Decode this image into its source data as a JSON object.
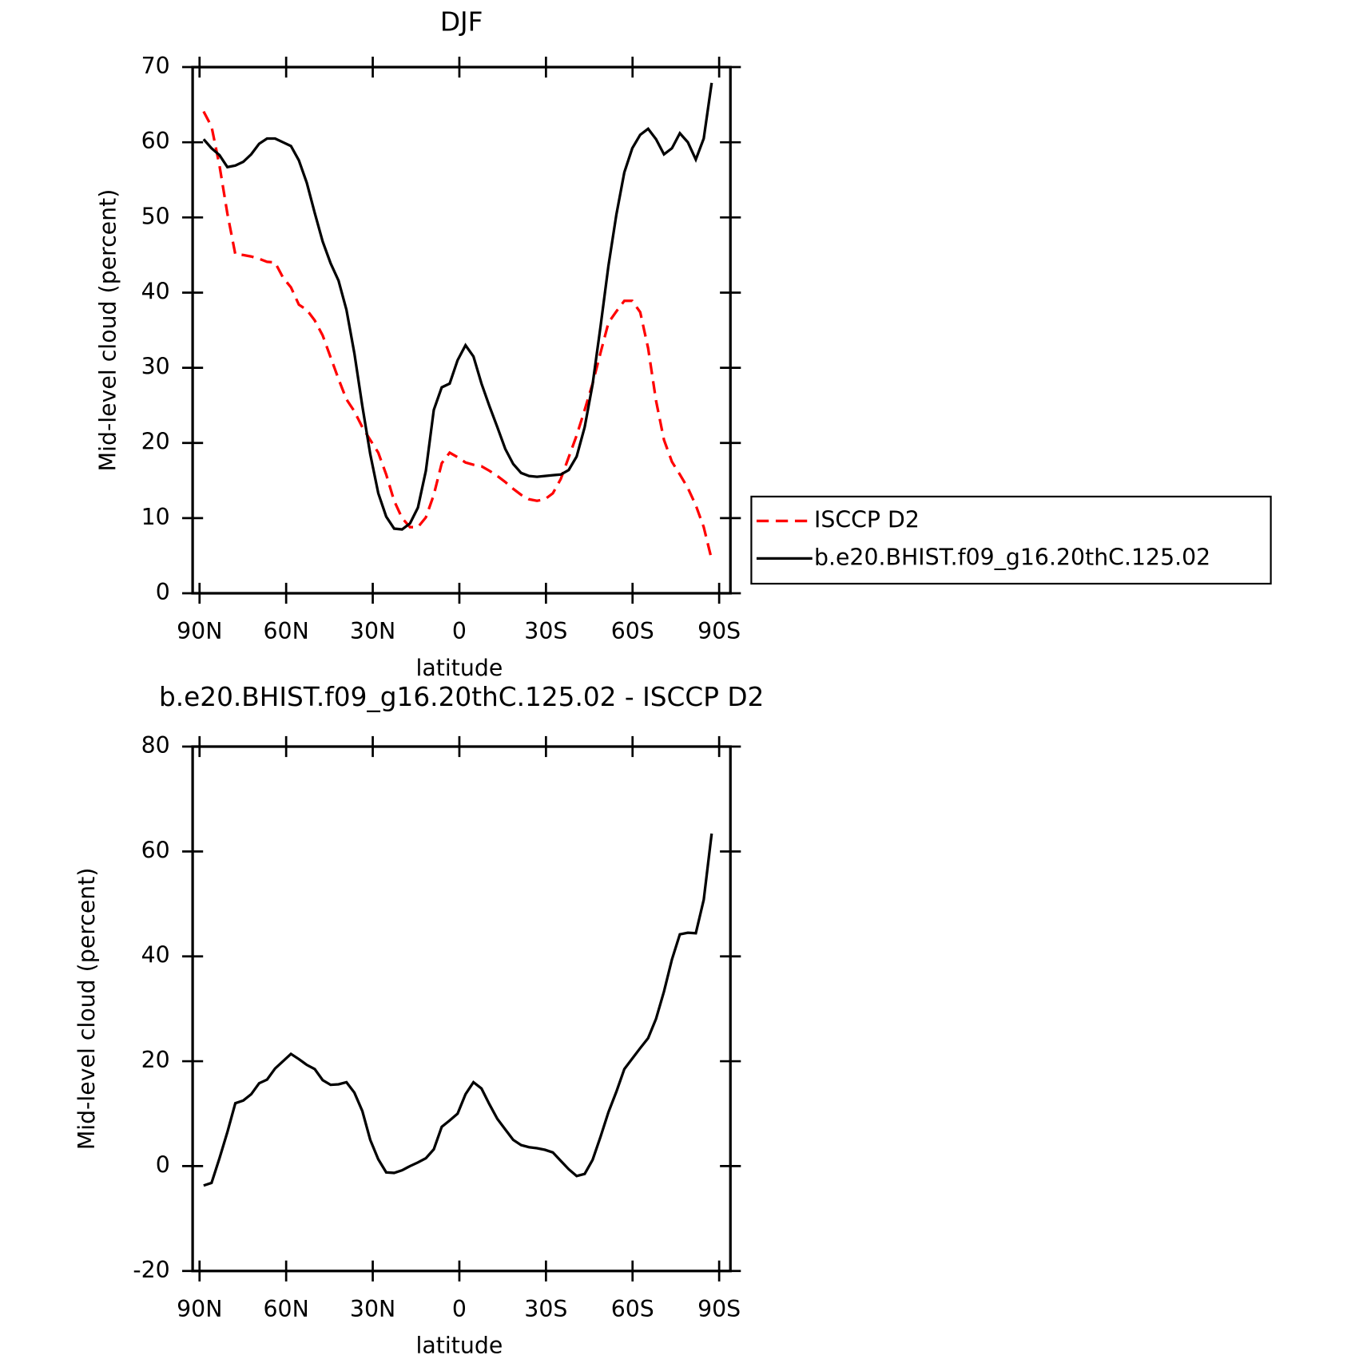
{
  "chart_data": [
    {
      "type": "line",
      "title": "DJF",
      "xlabel": "latitude",
      "ylabel": "Mid-level cloud (percent)",
      "x": [
        88.6,
        85.85,
        83.1,
        80.35,
        77.6,
        74.85,
        72.1,
        69.35,
        66.6,
        63.85,
        61.1,
        58.35,
        55.6,
        52.85,
        50.1,
        47.35,
        44.6,
        41.85,
        39.1,
        36.35,
        33.6,
        30.85,
        28.1,
        25.35,
        22.6,
        19.85,
        17.1,
        14.35,
        11.6,
        8.85,
        6.1,
        3.35,
        0.6,
        -2.15,
        -4.9,
        -7.65,
        -10.4,
        -13.15,
        -15.9,
        -18.65,
        -21.4,
        -24.15,
        -26.9,
        -29.65,
        -32.4,
        -35.15,
        -37.9,
        -40.65,
        -43.4,
        -46.15,
        -48.9,
        -51.65,
        -54.4,
        -57.15,
        -59.9,
        -62.65,
        -65.4,
        -68.15,
        -70.9,
        -73.65,
        -76.4,
        -79.15,
        -81.9,
        -84.65,
        -87.4
      ],
      "series": [
        {
          "name": "ISCCP D2",
          "color": "#ff0000",
          "dash": true,
          "values": [
            64.1,
            62.1,
            56.9,
            50.5,
            45.1,
            45.0,
            44.8,
            44.5,
            44.1,
            44.0,
            42.0,
            40.7,
            38.4,
            37.7,
            36.3,
            34.3,
            31.4,
            28.5,
            25.8,
            24.2,
            22.1,
            20.4,
            18.7,
            15.8,
            12.3,
            10.0,
            8.8,
            8.8,
            10.1,
            13.1,
            17.3,
            18.7,
            18.1,
            17.4,
            17.1,
            16.9,
            16.3,
            15.6,
            14.8,
            13.9,
            13.1,
            12.5,
            12.3,
            12.5,
            13.3,
            15.2,
            18.1,
            21.0,
            24.4,
            27.9,
            32.0,
            36.0,
            37.5,
            38.9,
            38.9,
            37.4,
            32.6,
            25.6,
            20.4,
            17.5,
            15.8,
            14.0,
            11.7,
            8.8,
            4.5
          ]
        },
        {
          "name": "b.e20.BHIST.f09_g16.20thC.125.02",
          "color": "#000000",
          "dash": false,
          "values": [
            60.4,
            59.2,
            58.3,
            56.7,
            56.9,
            57.4,
            58.4,
            59.8,
            60.5,
            60.5,
            60.0,
            59.5,
            57.6,
            54.6,
            50.6,
            46.8,
            43.9,
            41.6,
            37.7,
            31.9,
            24.9,
            18.5,
            13.3,
            10.2,
            8.6,
            8.5,
            9.3,
            11.4,
            16.3,
            24.4,
            27.4,
            27.9,
            31.0,
            33.0,
            31.5,
            27.9,
            24.9,
            22.1,
            19.2,
            17.2,
            16.0,
            15.6,
            15.5,
            15.6,
            15.7,
            15.8,
            16.4,
            18.2,
            22.1,
            27.8,
            35.5,
            43.6,
            50.4,
            56.0,
            59.2,
            61.0,
            61.8,
            60.4,
            58.4,
            59.2,
            61.2,
            60.0,
            57.7,
            60.5,
            67.9
          ]
        }
      ],
      "xlim": [
        92.4,
        -93.9
      ],
      "xticks": [
        {
          "value": 90,
          "label": "90N"
        },
        {
          "value": 60,
          "label": "60N"
        },
        {
          "value": 30,
          "label": "30N"
        },
        0,
        {
          "value": -30,
          "label": "30S"
        },
        {
          "value": -60,
          "label": "60S"
        },
        {
          "value": -90,
          "label": "90S"
        }
      ],
      "ylim": [
        0,
        70
      ],
      "yticks": [
        0,
        10,
        20,
        30,
        40,
        50,
        60,
        70
      ],
      "legend": "right"
    },
    {
      "type": "line",
      "title": "b.e20.BHIST.f09_g16.20thC.125.02 - ISCCP D2",
      "xlabel": "latitude",
      "ylabel": "Mid-level cloud (percent)",
      "x": [
        88.6,
        85.85,
        83.1,
        80.35,
        77.6,
        74.85,
        72.1,
        69.35,
        66.6,
        63.85,
        61.1,
        58.35,
        55.6,
        52.85,
        50.1,
        47.35,
        44.6,
        41.85,
        39.1,
        36.35,
        33.6,
        30.85,
        28.1,
        25.35,
        22.6,
        19.85,
        17.1,
        14.35,
        11.6,
        8.85,
        6.1,
        3.35,
        0.6,
        -2.15,
        -4.9,
        -7.65,
        -10.4,
        -13.15,
        -15.9,
        -18.65,
        -21.4,
        -24.15,
        -26.9,
        -29.65,
        -32.4,
        -35.15,
        -37.9,
        -40.65,
        -43.4,
        -46.15,
        -48.9,
        -51.65,
        -54.4,
        -57.15,
        -59.9,
        -62.65,
        -65.4,
        -68.15,
        -70.9,
        -73.65,
        -76.4,
        -79.15,
        -81.9,
        -84.65,
        -87.4
      ],
      "series": [
        {
          "color": "#000000",
          "dash": false,
          "values": [
            -3.7,
            -3.2,
            1.5,
            6.5,
            12,
            12.5,
            13.7,
            15.8,
            16.5,
            18.6,
            20,
            21.4,
            20.4,
            19.3,
            18.5,
            16.4,
            15.5,
            15.6,
            16,
            14,
            10.5,
            5,
            1.3,
            -1.2,
            -1.3,
            -0.8,
            0,
            0.7,
            1.5,
            3.2,
            7.5,
            8.7,
            10,
            13.7,
            16,
            14.8,
            11.8,
            9,
            7,
            5,
            4,
            3.6,
            3.4,
            3.1,
            2.6,
            1,
            -0.6,
            -1.9,
            -1.5,
            1.2,
            5.6,
            10.3,
            14.2,
            18.5,
            20.5,
            22.5,
            24.4,
            28.1,
            33.3,
            39.4,
            44.2,
            44.5,
            44.4,
            50.8,
            63.4
          ]
        }
      ],
      "xlim": [
        92.4,
        -93.9
      ],
      "xticks": [
        {
          "value": 90,
          "label": "90N"
        },
        {
          "value": 60,
          "label": "60N"
        },
        {
          "value": 30,
          "label": "30N"
        },
        0,
        {
          "value": -30,
          "label": "30S"
        },
        {
          "value": -60,
          "label": "60S"
        },
        {
          "value": -90,
          "label": "90S"
        }
      ],
      "ylim": [
        -20,
        80
      ],
      "yticks": [
        -20,
        0,
        20,
        40,
        60,
        80
      ]
    }
  ]
}
